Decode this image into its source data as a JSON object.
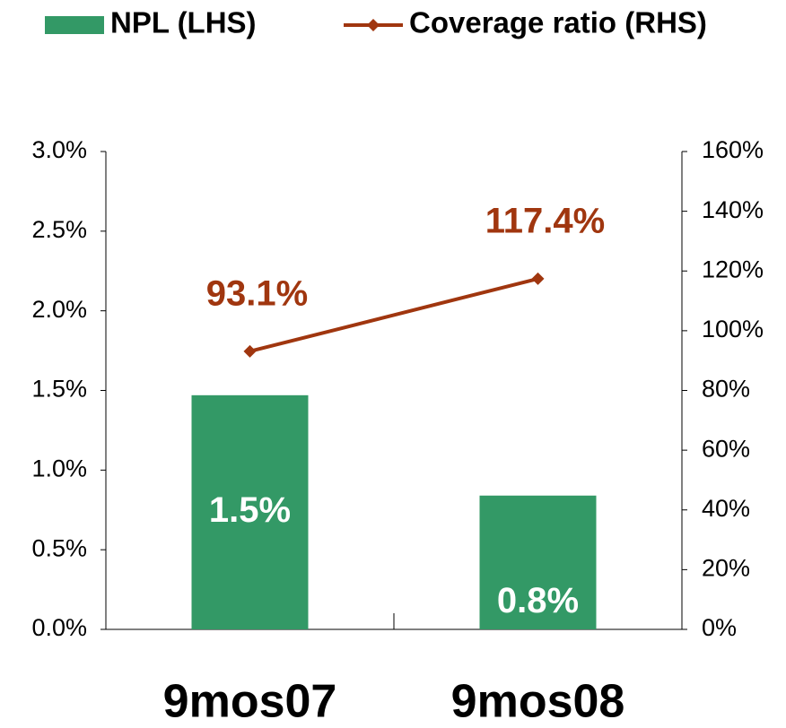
{
  "chart_data": {
    "type": "bar",
    "categories": [
      "9mos07",
      "9mos08"
    ],
    "series": [
      {
        "name": "NPL (LHS)",
        "type": "bar",
        "color": "#339966",
        "values": [
          1.47,
          0.84
        ],
        "value_labels": [
          "1.5%",
          "0.8%"
        ]
      },
      {
        "name": "Coverage ratio (RHS)",
        "type": "line",
        "axis": "y2",
        "color": "#a0360f",
        "values": [
          93.1,
          117.4
        ],
        "value_labels": [
          "93.1%",
          "117.4%"
        ]
      }
    ],
    "ylim": [
      0,
      3
    ],
    "yticks": [
      {
        "value": 0,
        "label": "0.0%"
      },
      {
        "value": 0.5,
        "label": "0.5%"
      },
      {
        "value": 1,
        "label": "1.0%"
      },
      {
        "value": 1.5,
        "label": "1.5%"
      },
      {
        "value": 2,
        "label": "2.0%"
      },
      {
        "value": 2.5,
        "label": "2.5%"
      },
      {
        "value": 3,
        "label": "3.0%"
      }
    ],
    "y2lim": [
      0,
      160
    ],
    "y2ticks": [
      {
        "value": 0,
        "label": "0%"
      },
      {
        "value": 20,
        "label": "20%"
      },
      {
        "value": 40,
        "label": "40%"
      },
      {
        "value": 60,
        "label": "60%"
      },
      {
        "value": 80,
        "label": "80%"
      },
      {
        "value": 100,
        "label": "100%"
      },
      {
        "value": 120,
        "label": "120%"
      },
      {
        "value": 140,
        "label": "140%"
      },
      {
        "value": 160,
        "label": "160%"
      }
    ],
    "legend": "top"
  }
}
